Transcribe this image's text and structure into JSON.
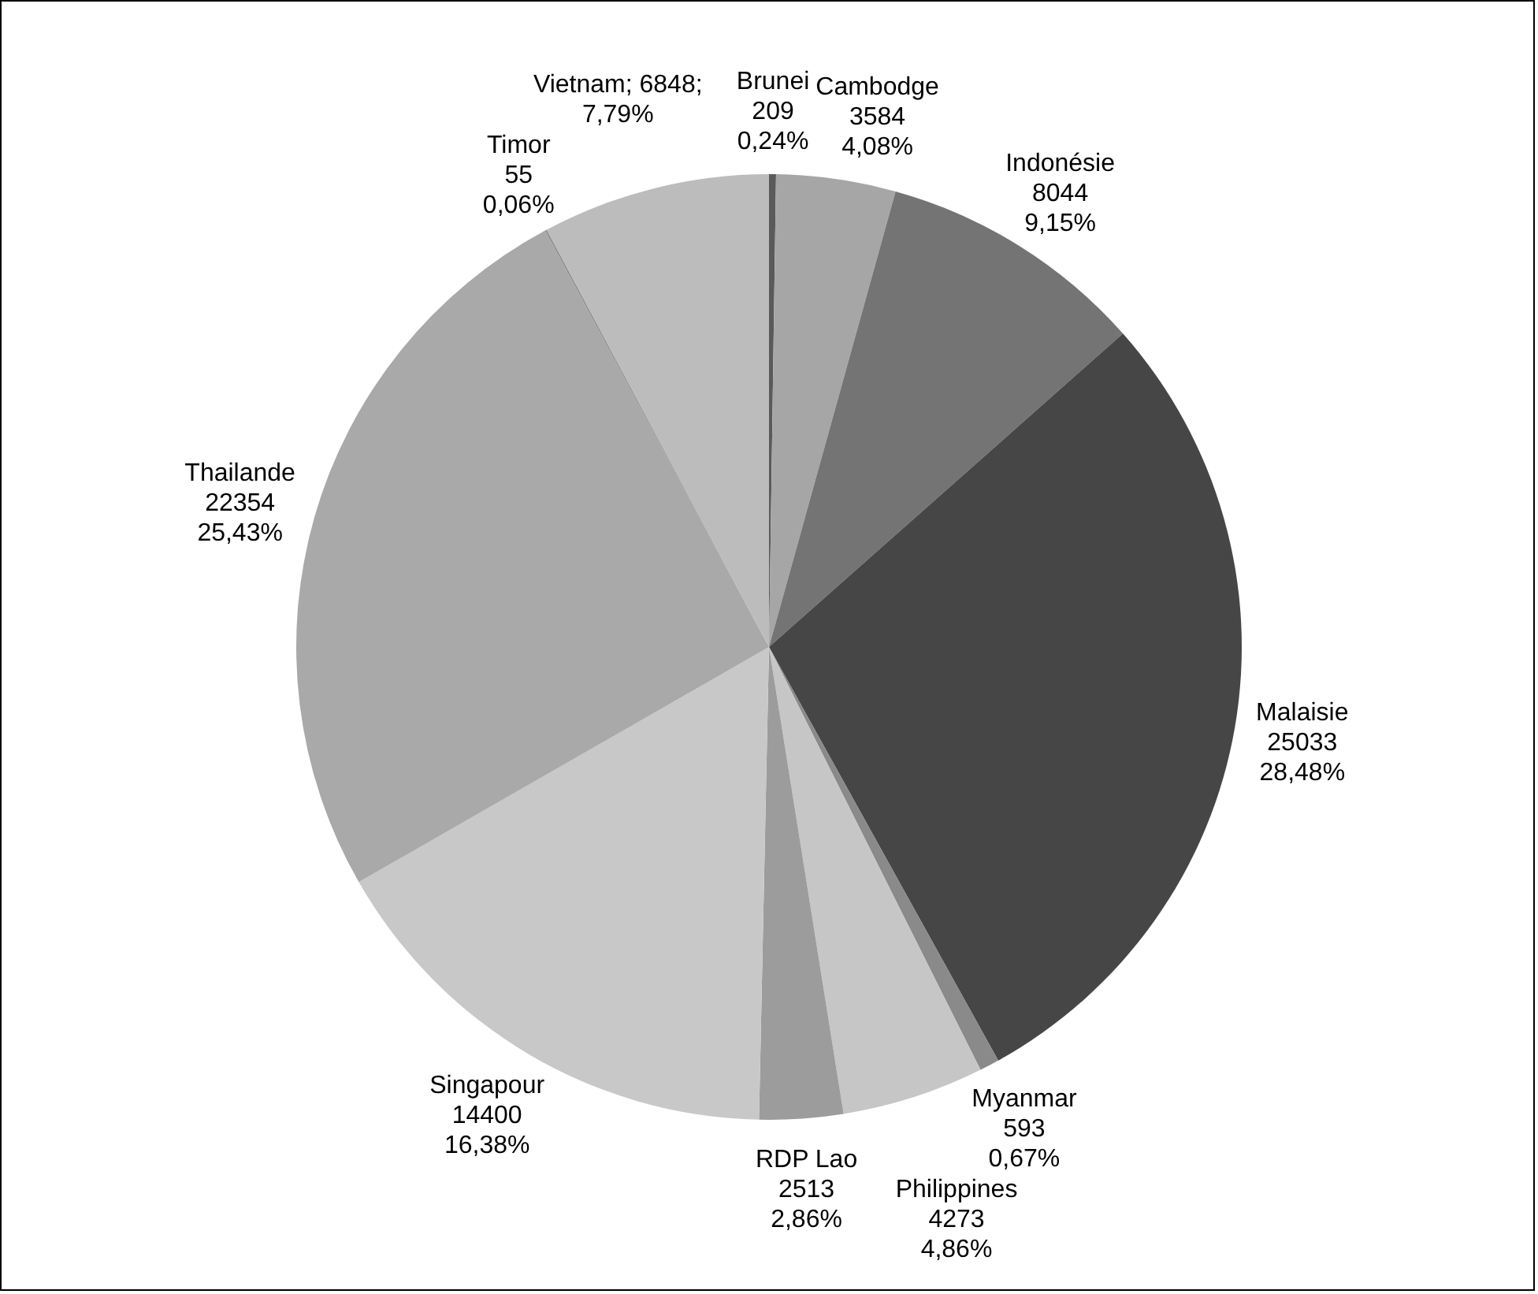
{
  "chart_data": {
    "type": "pie",
    "categories": [
      "Brunei",
      "Cambodge",
      "Indonésie",
      "Malaisie",
      "Myanmar",
      "Philippines",
      "RDP Lao",
      "Singapour",
      "Thailande",
      "Timor",
      "Vietnam"
    ],
    "values": [
      209,
      3584,
      8044,
      25033,
      593,
      4273,
      2513,
      14400,
      22354,
      55,
      6848
    ],
    "value_labels": [
      "\n209\n0,24%",
      "\n3584\n4,08%",
      "\n8044\n9,15%",
      "\n25033\n28,48%",
      "\n593\n0,67%",
      "\n4273\n4,86%",
      "\n2513\n2,86%",
      "\n14400\n16,38%",
      "\n22354\n25,43%",
      "\n55\n0,06%",
      "; 6848;\n7,79%"
    ],
    "colors": [
      "#5a5a5a",
      "#a6a6a6",
      "#747474",
      "#464646",
      "#8a8a8a",
      "#c6c6c6",
      "#9c9c9c",
      "#c8c8c8",
      "#a9a9a9",
      "#909090",
      "#bcbcbc"
    ]
  }
}
